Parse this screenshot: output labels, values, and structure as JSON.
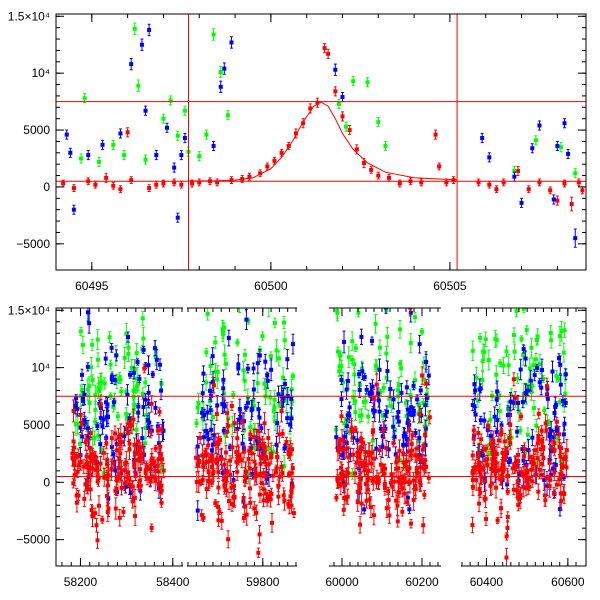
{
  "chart_data": [
    {
      "type": "scatter",
      "title": "",
      "xlabel": "",
      "ylabel": "",
      "xlim": [
        60494.0,
        60508.8
      ],
      "ylim": [
        -7300,
        15200
      ],
      "x_ticks": [
        {
          "value": 60495,
          "label": "60495"
        },
        {
          "value": 60500,
          "label": "60500"
        },
        {
          "value": 60505,
          "label": "60505"
        }
      ],
      "y_ticks": [
        {
          "value": -5000,
          "label": "−5000"
        },
        {
          "value": 0,
          "label": "0"
        },
        {
          "value": 5000,
          "label": "5000"
        },
        {
          "value": 10000,
          "label": "10⁴"
        },
        {
          "value": 15000,
          "label": "1.5×10⁴"
        }
      ],
      "hlines": [
        {
          "y": 7500,
          "color": "#ff0000"
        },
        {
          "y": 500,
          "color": "#ff0000"
        }
      ],
      "vlines": [
        {
          "x": 60497.7,
          "color": "#ff0000"
        },
        {
          "x": 60505.2,
          "color": "#ff0000"
        }
      ],
      "model_curve": {
        "color": "#ff0000",
        "points": [
          [
            60497.7,
            520
          ],
          [
            60498.5,
            540
          ],
          [
            60499.0,
            600
          ],
          [
            60499.5,
            800
          ],
          [
            60500.0,
            1600
          ],
          [
            60500.3,
            2600
          ],
          [
            60500.6,
            4000
          ],
          [
            60500.9,
            5700
          ],
          [
            60501.2,
            7100
          ],
          [
            60501.4,
            7450
          ],
          [
            60501.6,
            7100
          ],
          [
            60501.8,
            6000
          ],
          [
            60502.0,
            4700
          ],
          [
            60502.3,
            3300
          ],
          [
            60502.7,
            2100
          ],
          [
            60503.2,
            1300
          ],
          [
            60504.0,
            800
          ],
          [
            60505.2,
            620
          ]
        ]
      },
      "series": [
        {
          "color": "#ff0000",
          "points": [
            [
              60494.2,
              300,
              300
            ],
            [
              60494.5,
              -100,
              300
            ],
            [
              60494.9,
              500,
              300
            ],
            [
              60495.1,
              200,
              300
            ],
            [
              60495.4,
              800,
              400
            ],
            [
              60495.6,
              100,
              300
            ],
            [
              60495.8,
              -200,
              300
            ],
            [
              60496.0,
              4800,
              400
            ],
            [
              60496.1,
              600,
              300
            ],
            [
              60496.6,
              -100,
              300
            ],
            [
              60496.8,
              200,
              300
            ],
            [
              60497.0,
              300,
              300
            ],
            [
              60497.3,
              400,
              300
            ],
            [
              60497.5,
              200,
              300
            ],
            [
              60497.8,
              300,
              300
            ],
            [
              60498.0,
              400,
              300
            ],
            [
              60498.3,
              500,
              300
            ],
            [
              60498.5,
              400,
              300
            ],
            [
              60498.9,
              600,
              300
            ],
            [
              60499.2,
              700,
              300
            ],
            [
              60499.4,
              900,
              300
            ],
            [
              60499.7,
              1200,
              300
            ],
            [
              60499.9,
              1800,
              300
            ],
            [
              60500.1,
              2300,
              300
            ],
            [
              60500.3,
              3000,
              300
            ],
            [
              60500.5,
              3600,
              300
            ],
            [
              60500.7,
              4700,
              400
            ],
            [
              60500.9,
              5600,
              400
            ],
            [
              60501.1,
              6900,
              400
            ],
            [
              60501.3,
              7400,
              400
            ],
            [
              60501.5,
              12200,
              400
            ],
            [
              60501.6,
              11700,
              400
            ],
            [
              60501.8,
              8400,
              400
            ],
            [
              60502.0,
              6200,
              400
            ],
            [
              60502.2,
              5000,
              400
            ],
            [
              60502.4,
              3300,
              400
            ],
            [
              60502.6,
              2100,
              400
            ],
            [
              60502.8,
              1500,
              300
            ],
            [
              60503.0,
              1000,
              300
            ],
            [
              60503.3,
              800,
              300
            ],
            [
              60503.6,
              300,
              300
            ],
            [
              60503.9,
              500,
              300
            ],
            [
              60504.2,
              400,
              300
            ],
            [
              60504.6,
              4600,
              400
            ],
            [
              60504.7,
              1800,
              300
            ],
            [
              60504.9,
              400,
              300
            ],
            [
              60505.1,
              600,
              300
            ],
            [
              60505.8,
              400,
              300
            ],
            [
              60506.1,
              200,
              300
            ],
            [
              60506.3,
              -200,
              300
            ],
            [
              60506.5,
              400,
              300
            ],
            [
              60506.9,
              1400,
              400
            ],
            [
              60507.2,
              -200,
              300
            ],
            [
              60507.5,
              400,
              300
            ],
            [
              60507.8,
              -300,
              300
            ],
            [
              60508.0,
              -1200,
              400
            ],
            [
              60508.2,
              300,
              300
            ],
            [
              60508.4,
              -1500,
              600
            ],
            [
              60508.6,
              400,
              300
            ],
            [
              60508.7,
              -300,
              300
            ]
          ]
        },
        {
          "color": "#00ff00",
          "points": [
            [
              60494.7,
              2500,
              400
            ],
            [
              60494.8,
              7800,
              400
            ],
            [
              60495.2,
              2200,
              400
            ],
            [
              60495.6,
              3700,
              400
            ],
            [
              60495.9,
              2800,
              400
            ],
            [
              60496.2,
              13900,
              500
            ],
            [
              60496.3,
              8900,
              500
            ],
            [
              60496.5,
              2400,
              400
            ],
            [
              60497.0,
              6000,
              400
            ],
            [
              60497.2,
              7600,
              400
            ],
            [
              60497.4,
              4500,
              400
            ],
            [
              60497.6,
              6700,
              400
            ],
            [
              60497.7,
              3100,
              400
            ],
            [
              60498.0,
              2700,
              400
            ],
            [
              60498.2,
              4600,
              400
            ],
            [
              60498.4,
              13400,
              500
            ],
            [
              60498.6,
              10100,
              500
            ],
            [
              60498.8,
              6300,
              400
            ],
            [
              60501.9,
              7300,
              400
            ],
            [
              60502.1,
              5300,
              400
            ],
            [
              60502.3,
              9300,
              400
            ],
            [
              60502.7,
              9200,
              400
            ],
            [
              60503.0,
              5700,
              400
            ],
            [
              60503.2,
              3600,
              400
            ],
            [
              60506.8,
              1400,
              400
            ],
            [
              60507.4,
              4100,
              400
            ],
            [
              60508.1,
              3500,
              400
            ],
            [
              60508.5,
              1200,
              400
            ]
          ]
        },
        {
          "color": "#0000ff",
          "points": [
            [
              60494.3,
              4600,
              400
            ],
            [
              60494.4,
              3000,
              400
            ],
            [
              60494.5,
              -2000,
              400
            ],
            [
              60494.9,
              2800,
              400
            ],
            [
              60495.3,
              3700,
              400
            ],
            [
              60495.8,
              4700,
              400
            ],
            [
              60496.1,
              10800,
              500
            ],
            [
              60496.4,
              12500,
              500
            ],
            [
              60496.5,
              6700,
              400
            ],
            [
              60496.6,
              13800,
              500
            ],
            [
              60496.8,
              2800,
              400
            ],
            [
              60497.1,
              5200,
              400
            ],
            [
              60497.3,
              1700,
              400
            ],
            [
              60497.4,
              -2700,
              400
            ],
            [
              60497.5,
              2800,
              400
            ],
            [
              60497.6,
              4300,
              400
            ],
            [
              60498.4,
              3600,
              400
            ],
            [
              60498.6,
              8800,
              500
            ],
            [
              60498.7,
              10400,
              500
            ],
            [
              60498.9,
              12700,
              500
            ],
            [
              60501.8,
              10300,
              500
            ],
            [
              60502.0,
              7900,
              400
            ],
            [
              60505.9,
              4300,
              400
            ],
            [
              60506.1,
              2600,
              400
            ],
            [
              60506.8,
              900,
              400
            ],
            [
              60507.0,
              -1400,
              400
            ],
            [
              60507.3,
              3400,
              400
            ],
            [
              60507.5,
              5400,
              400
            ],
            [
              60507.9,
              -1100,
              400
            ],
            [
              60508.0,
              3600,
              400
            ],
            [
              60508.2,
              5600,
              400
            ],
            [
              60508.3,
              2900,
              400
            ],
            [
              60508.5,
              -4500,
              800
            ]
          ]
        }
      ]
    },
    {
      "type": "scatter",
      "title": "",
      "xlabel": "",
      "ylabel": "",
      "broken_x_axis": true,
      "segments": [
        {
          "xlim": [
            58160,
            58420
          ],
          "ticks": [
            {
              "value": 58200,
              "label": "58200"
            },
            {
              "value": 58400,
              "label": "58400"
            }
          ]
        },
        {
          "xlim": [
            59620,
            59880
          ],
          "ticks": [
            {
              "value": 59800,
              "label": "59800"
            }
          ]
        },
        {
          "xlim": [
            59970,
            60245
          ],
          "ticks": [
            {
              "value": 60000,
              "label": "60000"
            },
            {
              "value": 60200,
              "label": "60200"
            }
          ]
        },
        {
          "xlim": [
            60340,
            60620
          ],
          "ticks": [
            {
              "value": 60400,
              "label": "60400"
            },
            {
              "value": 60600,
              "label": "60600"
            }
          ]
        }
      ],
      "ylim": [
        -7300,
        15200
      ],
      "y_ticks": [
        {
          "value": -5000,
          "label": "−5000"
        },
        {
          "value": 0,
          "label": "0"
        },
        {
          "value": 5000,
          "label": "5000"
        },
        {
          "value": 10000,
          "label": "10⁴"
        },
        {
          "value": 15000,
          "label": "1.5×10⁴"
        }
      ],
      "hlines": [
        {
          "y": 7500,
          "color": "#ff0000"
        },
        {
          "y": 500,
          "color": "#ff0000"
        }
      ],
      "series": [
        {
          "color": "#00ff00",
          "description": "dense cloud, typically 3000–15000"
        },
        {
          "color": "#0000ff",
          "description": "dense cloud, typically −3000–13000"
        },
        {
          "color": "#ff0000",
          "description": "dense cloud, typically −2000–6000"
        }
      ]
    }
  ]
}
